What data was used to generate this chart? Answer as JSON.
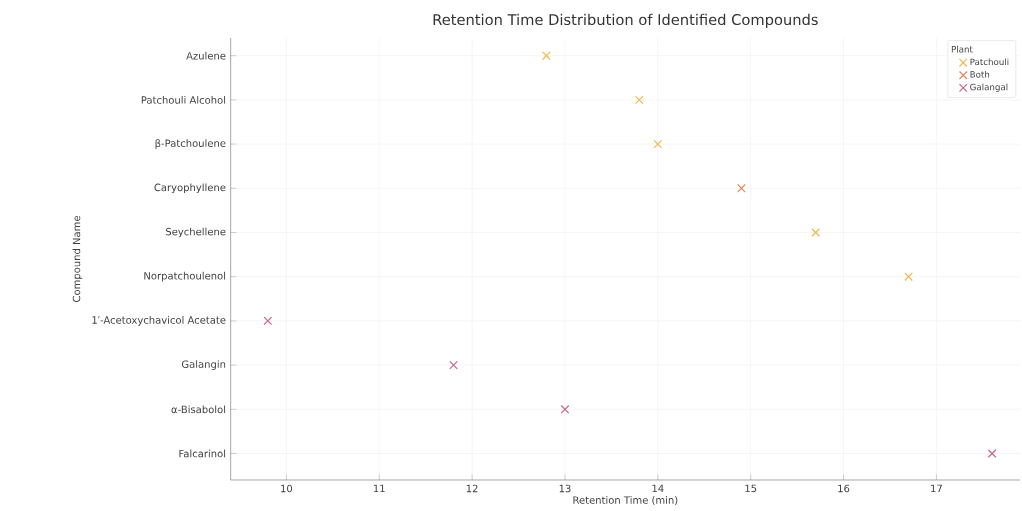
{
  "chart_data": {
    "type": "scatter",
    "orientation": "horizontal",
    "title": "Retention Time Distribution of Identified Compounds",
    "xlabel": "Retention Time (min)",
    "ylabel": "Compound Name",
    "legend_title": "Plant",
    "categories": [
      "Azulene",
      "Patchouli Alcohol",
      "β-Patchoulene",
      "Caryophyllene",
      "Seychellene",
      "Norpatchoulenol",
      "1′-Acetoxychavicol Acetate",
      "Galangin",
      "α-Bisabolol",
      "Falcarinol"
    ],
    "series": [
      {
        "name": "Patchouli",
        "color": "#f2b84b",
        "values": [
          12.8,
          13.8,
          14.0,
          null,
          15.7,
          16.7,
          null,
          null,
          null,
          null
        ]
      },
      {
        "name": "Both",
        "color": "#dc8a5e",
        "values": [
          null,
          null,
          null,
          14.9,
          null,
          null,
          null,
          null,
          null,
          null
        ]
      },
      {
        "name": "Galangal",
        "color": "#c8668a",
        "values": [
          null,
          null,
          null,
          null,
          null,
          null,
          9.8,
          11.8,
          13.0,
          17.6
        ]
      }
    ],
    "xlim": [
      9.4,
      17.9
    ],
    "xticks": [
      10,
      11,
      12,
      13,
      14,
      15,
      16,
      17
    ],
    "grid": true,
    "legend": "top right",
    "marker": "cross"
  }
}
